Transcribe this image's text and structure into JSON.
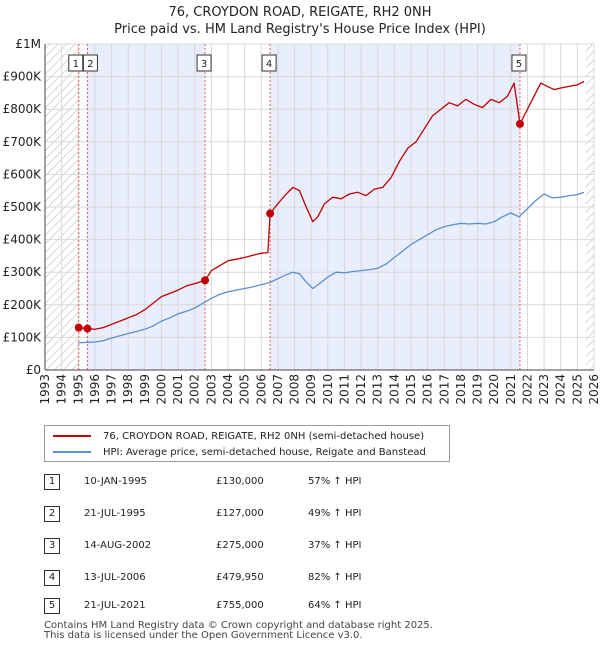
{
  "title": {
    "line1": "76, CROYDON ROAD, REIGATE, RH2 0NH",
    "line2": "Price paid vs. HM Land Registry's House Price Index (HPI)"
  },
  "colors": {
    "property": "#c00000",
    "hpi": "#5b8fd0",
    "shade": "#e8eefb",
    "hatch": "#bbbbbb",
    "grid": "#d8d8d8",
    "vline": "#e06060"
  },
  "legend": {
    "property_label": "76, CROYDON ROAD, REIGATE, RH2 0NH (semi-detached house)",
    "hpi_label": "HPI: Average price, semi-detached house, Reigate and Banstead"
  },
  "sales": [
    {
      "num": "1",
      "date": "10-JAN-1995",
      "price": "£130,000",
      "hpi": "57% ↑ HPI"
    },
    {
      "num": "2",
      "date": "21-JUL-1995",
      "price": "£127,000",
      "hpi": "49% ↑ HPI"
    },
    {
      "num": "3",
      "date": "14-AUG-2002",
      "price": "£275,000",
      "hpi": "37% ↑ HPI"
    },
    {
      "num": "4",
      "date": "13-JUL-2006",
      "price": "£479,950",
      "hpi": "82% ↑ HPI"
    },
    {
      "num": "5",
      "date": "21-JUL-2021",
      "price": "£755,000",
      "hpi": "64% ↑ HPI"
    }
  ],
  "footer": {
    "line1": "Contains HM Land Registry data © Crown copyright and database right 2025.",
    "line2": "This data is licensed under the Open Government Licence v3.0."
  },
  "chart_data": {
    "type": "line",
    "title": "76, CROYDON ROAD, REIGATE, RH2 0NH — Price paid vs. HM Land Registry's House Price Index (HPI)",
    "xlim": [
      1993,
      2026
    ],
    "ylim": [
      0,
      1000000
    ],
    "x_ticks": [
      "1993",
      "1994",
      "1995",
      "1996",
      "1997",
      "1998",
      "1999",
      "2000",
      "2001",
      "2002",
      "2003",
      "2004",
      "2005",
      "2006",
      "2007",
      "2008",
      "2009",
      "2010",
      "2011",
      "2012",
      "2013",
      "2014",
      "2015",
      "2016",
      "2017",
      "2018",
      "2019",
      "2020",
      "2021",
      "2022",
      "2023",
      "2024",
      "2025",
      "2026"
    ],
    "y_ticks": [
      {
        "value": 0,
        "label": "£0"
      },
      {
        "value": 100000,
        "label": "£100K"
      },
      {
        "value": 200000,
        "label": "£200K"
      },
      {
        "value": 300000,
        "label": "£300K"
      },
      {
        "value": 400000,
        "label": "£400K"
      },
      {
        "value": 500000,
        "label": "£500K"
      },
      {
        "value": 600000,
        "label": "£600K"
      },
      {
        "value": 700000,
        "label": "£700K"
      },
      {
        "value": 800000,
        "label": "£800K"
      },
      {
        "value": 900000,
        "label": "£900K"
      },
      {
        "value": 1000000,
        "label": "£1M"
      }
    ],
    "shaded_periods": [
      [
        1995.53,
        2002.62
      ],
      [
        2006.53,
        2021.55
      ]
    ],
    "hatched_periods": [
      [
        1993,
        1995.0
      ],
      [
        2025.5,
        2026
      ]
    ],
    "sale_markers": [
      {
        "label": "1",
        "x": 1995.03,
        "y": 130000
      },
      {
        "label": "2",
        "x": 1995.55,
        "y": 127000
      },
      {
        "label": "3",
        "x": 2002.62,
        "y": 275000
      },
      {
        "label": "4",
        "x": 2006.53,
        "y": 479950
      },
      {
        "label": "5",
        "x": 2021.55,
        "y": 755000
      }
    ],
    "series": [
      {
        "name": "76, CROYDON ROAD, REIGATE, RH2 0NH (semi-detached house)",
        "color": "#c00000",
        "x": [
          1995.03,
          1995.55,
          1996.0,
          1996.5,
          1997.0,
          1997.5,
          1998.0,
          1998.5,
          1999.0,
          1999.5,
          2000.0,
          2000.5,
          2001.0,
          2001.5,
          2002.0,
          2002.62,
          2003.0,
          2003.5,
          2004.0,
          2004.5,
          2005.0,
          2005.5,
          2006.0,
          2006.4,
          2006.53,
          2007.0,
          2007.5,
          2007.9,
          2008.3,
          2008.7,
          2009.1,
          2009.4,
          2009.8,
          2010.3,
          2010.8,
          2011.3,
          2011.8,
          2012.3,
          2012.8,
          2013.3,
          2013.8,
          2014.3,
          2014.8,
          2015.3,
          2015.8,
          2016.3,
          2016.8,
          2017.3,
          2017.8,
          2018.3,
          2018.8,
          2019.3,
          2019.8,
          2020.3,
          2020.8,
          2021.2,
          2021.55,
          2021.9,
          2022.3,
          2022.8,
          2023.2,
          2023.6,
          2024.0,
          2024.5,
          2025.0,
          2025.4
        ],
        "y": [
          130000,
          127000,
          125000,
          130000,
          140000,
          150000,
          160000,
          170000,
          185000,
          205000,
          225000,
          235000,
          245000,
          258000,
          265000,
          275000,
          305000,
          320000,
          335000,
          340000,
          345000,
          352000,
          358000,
          360000,
          479950,
          510000,
          540000,
          560000,
          550000,
          500000,
          455000,
          470000,
          510000,
          530000,
          525000,
          540000,
          545000,
          535000,
          555000,
          560000,
          590000,
          640000,
          680000,
          700000,
          740000,
          780000,
          800000,
          820000,
          810000,
          830000,
          815000,
          805000,
          830000,
          820000,
          840000,
          880000,
          755000,
          790000,
          830000,
          880000,
          870000,
          860000,
          865000,
          870000,
          875000,
          885000
        ]
      },
      {
        "name": "HPI: Average price, semi-detached house, Reigate and Banstead",
        "color": "#5b8fd0",
        "x": [
          1995.0,
          1995.5,
          1996.0,
          1996.5,
          1997.0,
          1997.5,
          1998.0,
          1998.5,
          1999.0,
          1999.5,
          2000.0,
          2000.5,
          2001.0,
          2001.5,
          2002.0,
          2002.5,
          2003.0,
          2003.5,
          2004.0,
          2004.5,
          2005.0,
          2005.5,
          2006.0,
          2006.5,
          2007.0,
          2007.5,
          2007.9,
          2008.3,
          2008.7,
          2009.1,
          2009.5,
          2010.0,
          2010.5,
          2011.0,
          2011.5,
          2012.0,
          2012.5,
          2013.0,
          2013.5,
          2014.0,
          2014.5,
          2015.0,
          2015.5,
          2016.0,
          2016.5,
          2017.0,
          2017.5,
          2018.0,
          2018.5,
          2019.0,
          2019.5,
          2020.0,
          2020.5,
          2021.0,
          2021.5,
          2022.0,
          2022.5,
          2023.0,
          2023.5,
          2024.0,
          2024.5,
          2025.0,
          2025.4
        ],
        "y": [
          83000,
          85000,
          86000,
          90000,
          98000,
          105000,
          112000,
          118000,
          125000,
          135000,
          150000,
          160000,
          172000,
          180000,
          190000,
          205000,
          220000,
          232000,
          240000,
          245000,
          250000,
          255000,
          262000,
          268000,
          280000,
          292000,
          300000,
          295000,
          270000,
          250000,
          265000,
          285000,
          300000,
          298000,
          302000,
          305000,
          308000,
          312000,
          325000,
          345000,
          365000,
          385000,
          400000,
          415000,
          430000,
          440000,
          445000,
          450000,
          448000,
          450000,
          448000,
          455000,
          470000,
          482000,
          470000,
          495000,
          520000,
          540000,
          528000,
          530000,
          535000,
          538000,
          545000
        ]
      }
    ]
  }
}
